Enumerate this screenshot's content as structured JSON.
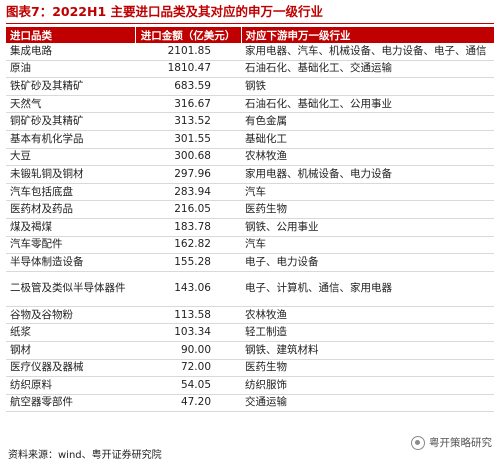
{
  "figure": {
    "title": "图表7：2022H1 主要进口品类及其对应的申万一级行业",
    "source": "资料来源：wind、粤开证券研究院",
    "watermark": "粤开策略研究"
  },
  "table": {
    "headers": [
      "进口品类",
      "进口金额（亿美元）",
      "对应下游申万一级行业"
    ],
    "rows": [
      [
        "集成电路",
        "2101.85",
        "家用电器、汽车、机械设备、电力设备、电子、通信"
      ],
      [
        "原油",
        "1810.47",
        "石油石化、基础化工、交通运输"
      ],
      [
        "铁矿砂及其精矿",
        "683.59",
        "钢铁"
      ],
      [
        "天然气",
        "316.67",
        "石油石化、基础化工、公用事业"
      ],
      [
        "铜矿砂及其精矿",
        "313.52",
        "有色金属"
      ],
      [
        "基本有机化学品",
        "301.55",
        "基础化工"
      ],
      [
        "大豆",
        "300.68",
        "农林牧渔"
      ],
      [
        "未锻轧铜及铜材",
        "297.96",
        "家用电器、机械设备、电力设备"
      ],
      [
        "汽车包括底盘",
        "283.94",
        "汽车"
      ],
      [
        "医药材及药品",
        "216.05",
        "医药生物"
      ],
      [
        "煤及褐煤",
        "183.78",
        "钢铁、公用事业"
      ],
      [
        "汽车零配件",
        "162.82",
        "汽车"
      ],
      [
        "半导体制造设备",
        "155.28",
        "电子、电力设备"
      ],
      [
        "二极管及类似半导体器件",
        "143.06",
        "电子、计算机、通信、家用电器"
      ],
      [
        "谷物及谷物粉",
        "113.58",
        "农林牧渔"
      ],
      [
        "纸浆",
        "103.34",
        "轻工制造"
      ],
      [
        "钢材",
        "90.00",
        "钢铁、建筑材料"
      ],
      [
        "医疗仪器及器械",
        "72.00",
        "医药生物"
      ],
      [
        "纺织原料",
        "54.05",
        "纺织服饰"
      ],
      [
        "航空器零部件",
        "47.20",
        "交通运输"
      ]
    ]
  }
}
